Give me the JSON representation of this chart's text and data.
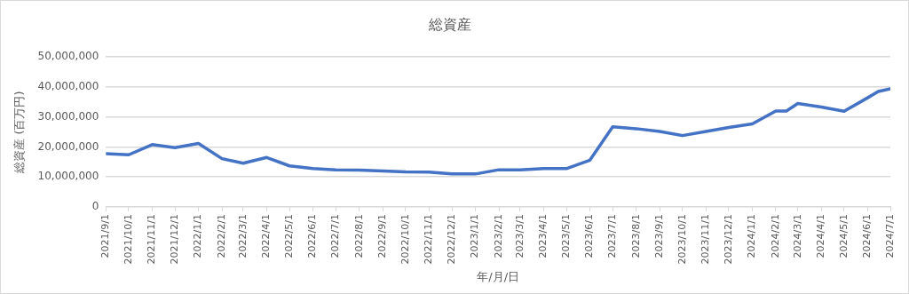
{
  "chart_data": {
    "type": "line",
    "title": "総資産",
    "xlabel": "年/月/日",
    "ylabel": "総資産 (百万円)",
    "x": [
      "2021-09-01",
      "2021-10-01",
      "2021-11-01",
      "2021-12-01",
      "2022-01-01",
      "2022-02-01",
      "2022-03-01",
      "2022-04-01",
      "2022-05-01",
      "2022-06-01",
      "2022-07-01",
      "2022-08-01",
      "2022-09-01",
      "2022-10-01",
      "2022-11-01",
      "2022-12-01",
      "2023-01-01",
      "2023-02-01",
      "2023-03-01",
      "2023-04-01",
      "2023-05-01",
      "2023-06-01",
      "2023-07-01",
      "2023-08-01",
      "2023-09-01",
      "2023-10-01",
      "2023-11-01",
      "2023-12-01",
      "2024-01-01",
      "2024-02-01",
      "2024-02-15",
      "2024-03-01",
      "2024-04-01",
      "2024-05-01",
      "2024-06-01",
      "2024-06-15",
      "2024-07-01"
    ],
    "series": [
      {
        "color": "#4472c4",
        "values": [
          17800000,
          17400000,
          20800000,
          19800000,
          21200000,
          16100000,
          14600000,
          16500000,
          13700000,
          12800000,
          12400000,
          12300000,
          12000000,
          11700000,
          11600000,
          11000000,
          11000000,
          12400000,
          12400000,
          12800000,
          12800000,
          15600000,
          26700000,
          26100000,
          25200000,
          23800000,
          25200000,
          26500000,
          27700000,
          32000000,
          32000000,
          34500000,
          33300000,
          31900000,
          36400000,
          38500000,
          39400000
        ]
      }
    ],
    "xlim": [
      "2021-09-01",
      "2024-07-01"
    ],
    "xticks": [
      {
        "value": "2021-09-01",
        "label": "2021/9/1"
      },
      {
        "value": "2021-10-01",
        "label": "2021/10/1"
      },
      {
        "value": "2021-11-01",
        "label": "2021/11/1"
      },
      {
        "value": "2021-12-01",
        "label": "2021/12/1"
      },
      {
        "value": "2022-01-01",
        "label": "2022/1/1"
      },
      {
        "value": "2022-02-01",
        "label": "2022/2/1"
      },
      {
        "value": "2022-03-01",
        "label": "2022/3/1"
      },
      {
        "value": "2022-04-01",
        "label": "2022/4/1"
      },
      {
        "value": "2022-05-01",
        "label": "2022/5/1"
      },
      {
        "value": "2022-06-01",
        "label": "2022/6/1"
      },
      {
        "value": "2022-07-01",
        "label": "2022/7/1"
      },
      {
        "value": "2022-08-01",
        "label": "2022/8/1"
      },
      {
        "value": "2022-09-01",
        "label": "2022/9/1"
      },
      {
        "value": "2022-10-01",
        "label": "2022/10/1"
      },
      {
        "value": "2022-11-01",
        "label": "2022/11/1"
      },
      {
        "value": "2022-12-01",
        "label": "2022/12/1"
      },
      {
        "value": "2023-01-01",
        "label": "2023/1/1"
      },
      {
        "value": "2023-02-01",
        "label": "2023/2/1"
      },
      {
        "value": "2023-03-01",
        "label": "2023/3/1"
      },
      {
        "value": "2023-04-01",
        "label": "2023/4/1"
      },
      {
        "value": "2023-05-01",
        "label": "2023/5/1"
      },
      {
        "value": "2023-06-01",
        "label": "2023/6/1"
      },
      {
        "value": "2023-07-01",
        "label": "2023/7/1"
      },
      {
        "value": "2023-08-01",
        "label": "2023/8/1"
      },
      {
        "value": "2023-09-01",
        "label": "2023/9/1"
      },
      {
        "value": "2023-10-01",
        "label": "2023/10/1"
      },
      {
        "value": "2023-11-01",
        "label": "2023/11/1"
      },
      {
        "value": "2023-12-01",
        "label": "2023/12/1"
      },
      {
        "value": "2024-01-01",
        "label": "2024/1/1"
      },
      {
        "value": "2024-02-01",
        "label": "2024/2/1"
      },
      {
        "value": "2024-03-01",
        "label": "2024/3/1"
      },
      {
        "value": "2024-04-01",
        "label": "2024/4/1"
      },
      {
        "value": "2024-05-01",
        "label": "2024/5/1"
      },
      {
        "value": "2024-06-01",
        "label": "2024/6/1"
      },
      {
        "value": "2024-07-01",
        "label": "2024/7/1"
      }
    ],
    "ylim": [
      0,
      50000000
    ],
    "yticks": [
      {
        "value": 0,
        "label": "0"
      },
      {
        "value": 10000000,
        "label": "10,000,000"
      },
      {
        "value": 20000000,
        "label": "20,000,000"
      },
      {
        "value": 30000000,
        "label": "30,000,000"
      },
      {
        "value": 40000000,
        "label": "40,000,000"
      },
      {
        "value": 50000000,
        "label": "50,000,000"
      }
    ],
    "grid": "y",
    "legend": false,
    "marker": "none",
    "line_style": "solid"
  }
}
